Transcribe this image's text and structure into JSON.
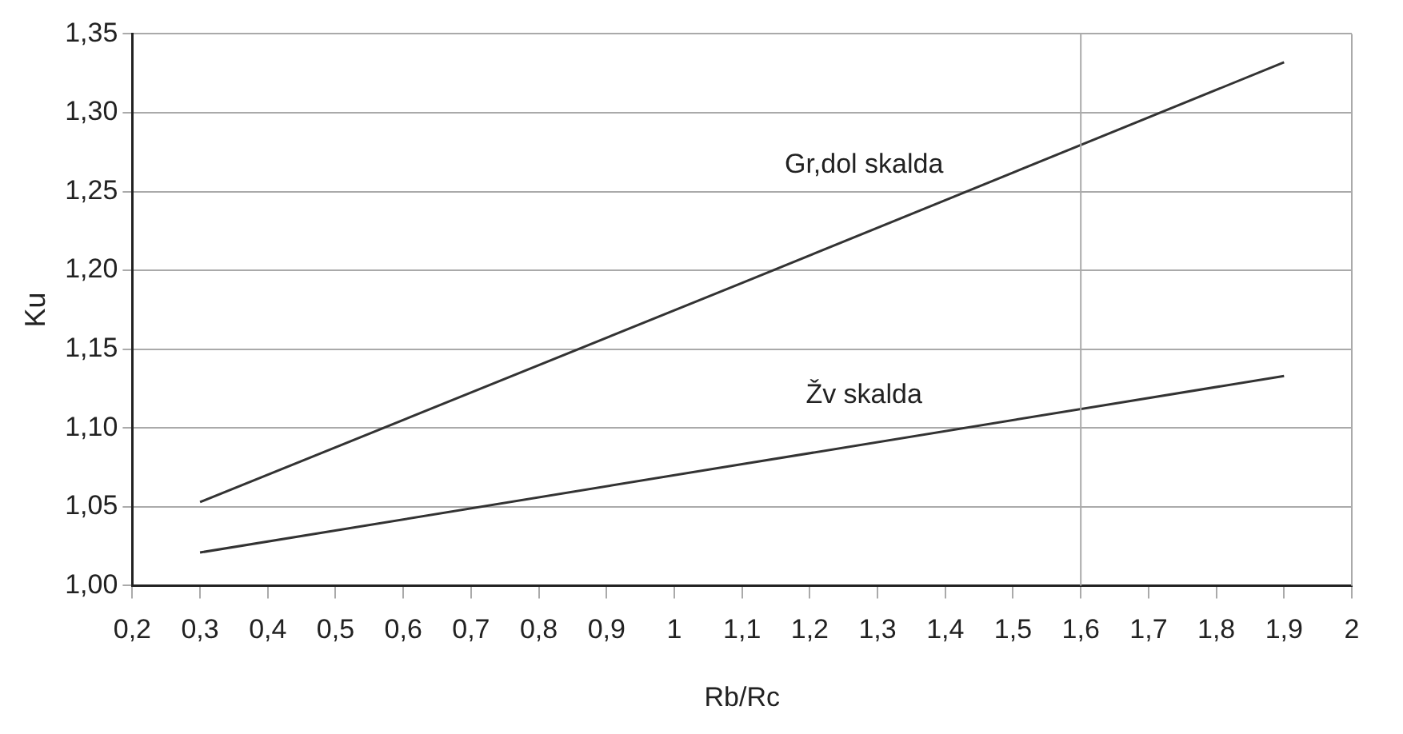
{
  "chart_data": {
    "type": "line",
    "xlabel": "Rb/Rc",
    "ylabel": "Ku",
    "series": [
      {
        "name": "Gr,dol skalda",
        "color": "#333333",
        "x": [
          0.3,
          1.1,
          1.9
        ],
        "values": [
          1.053,
          1.192,
          1.332
        ]
      },
      {
        "name": "Žv skalda",
        "color": "#333333",
        "x": [
          0.3,
          1.1,
          1.9
        ],
        "values": [
          1.021,
          1.077,
          1.133
        ]
      }
    ],
    "xlim": [
      0.2,
      2
    ],
    "xticks": [
      {
        "value": 0.2,
        "label": "0,2"
      },
      {
        "value": 0.3,
        "label": "0,3"
      },
      {
        "value": 0.4,
        "label": "0,4"
      },
      {
        "value": 0.5,
        "label": "0,5"
      },
      {
        "value": 0.6,
        "label": "0,6"
      },
      {
        "value": 0.7,
        "label": "0,7"
      },
      {
        "value": 0.8,
        "label": "0,8"
      },
      {
        "value": 0.9,
        "label": "0,9"
      },
      1,
      {
        "value": 1.1,
        "label": "1,1"
      },
      {
        "value": 1.2,
        "label": "1,2"
      },
      {
        "value": 1.3,
        "label": "1,3"
      },
      {
        "value": 1.4,
        "label": "1,4"
      },
      {
        "value": 1.5,
        "label": "1,5"
      },
      {
        "value": 1.6,
        "label": "1,6"
      },
      {
        "value": 1.7,
        "label": "1,7"
      },
      {
        "value": 1.8,
        "label": "1,8"
      },
      {
        "value": 1.9,
        "label": "1,9"
      },
      2
    ],
    "ylim": [
      1.0,
      1.35
    ],
    "yticks": [
      {
        "value": 1.0,
        "label": "1,00"
      },
      {
        "value": 1.05,
        "label": "1,05"
      },
      {
        "value": 1.1,
        "label": "1,10"
      },
      {
        "value": 1.15,
        "label": "1,15"
      },
      {
        "value": 1.2,
        "label": "1,20"
      },
      {
        "value": 1.25,
        "label": "1,25"
      },
      {
        "value": 1.3,
        "label": "1,30"
      },
      {
        "value": 1.35,
        "label": "1,35"
      }
    ],
    "grid": "y",
    "legend": false,
    "marker": "none",
    "line_style": "solid",
    "ref_lines": [
      {
        "axis": "x",
        "value": 1.6,
        "color": "#aaaaaa"
      }
    ]
  }
}
